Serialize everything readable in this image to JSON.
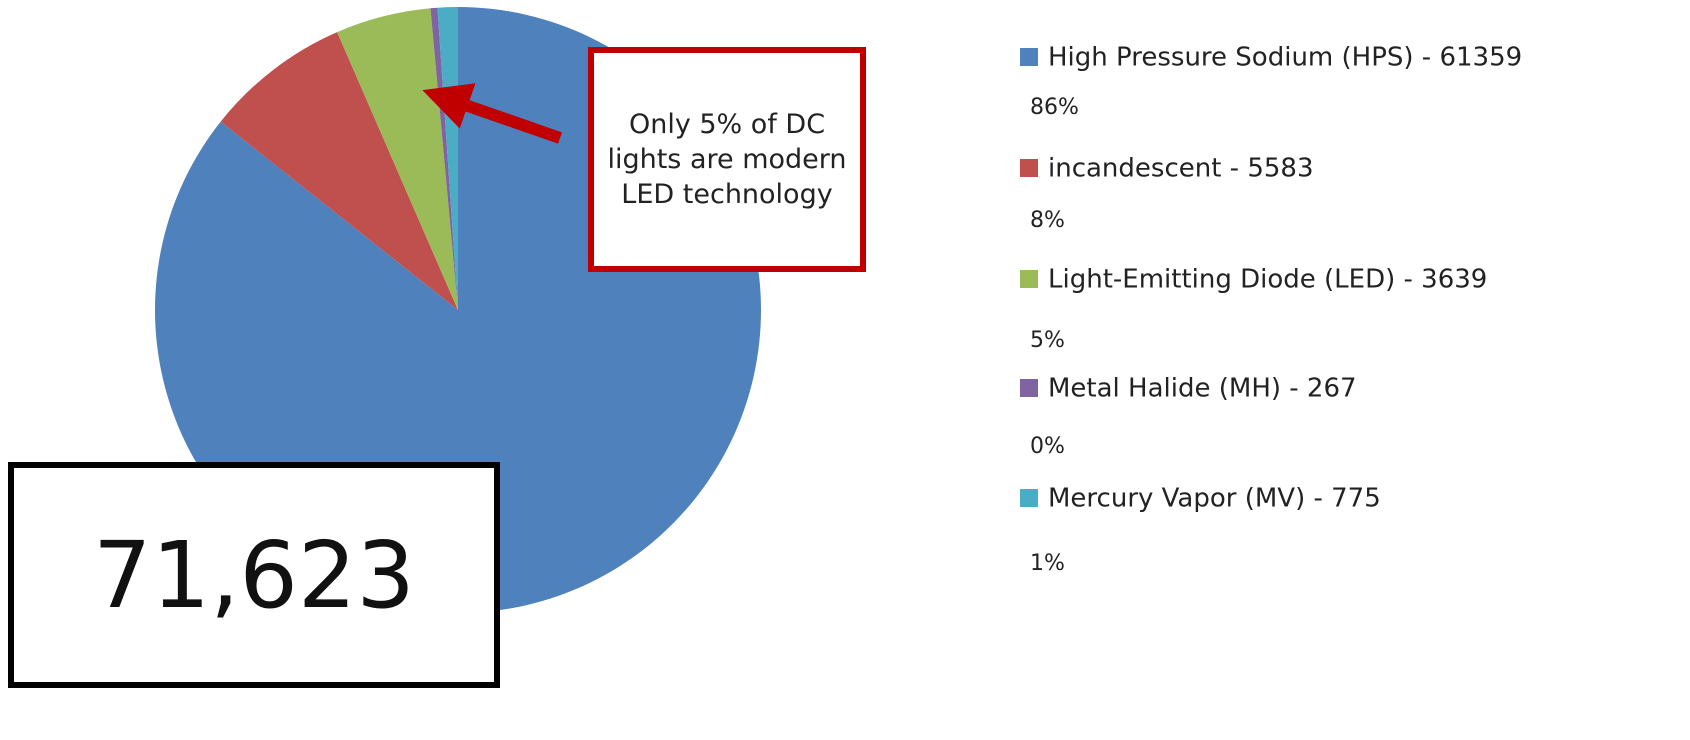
{
  "chart_data": {
    "type": "pie",
    "categories": [
      "High Pressure Sodium (HPS) - 61359",
      "incandescent - 5583",
      "Light-Emitting Diode (LED) - 3639",
      "Metal Halide (MH) - 267",
      "Mercury Vapor (MV) - 775"
    ],
    "values": [
      85.67,
      7.79,
      5.08,
      0.37,
      1.08
    ],
    "value_labels": [
      "86%",
      "8%",
      "5%",
      "0%",
      "1%"
    ],
    "colors": [
      "#4f81bd",
      "#c0504d",
      "#9bbb59",
      "#8064a2",
      "#4bacc6"
    ],
    "legend": "right",
    "annotation": "Only 5% of DC lights are modern LED technology",
    "total_label": "71,623"
  }
}
